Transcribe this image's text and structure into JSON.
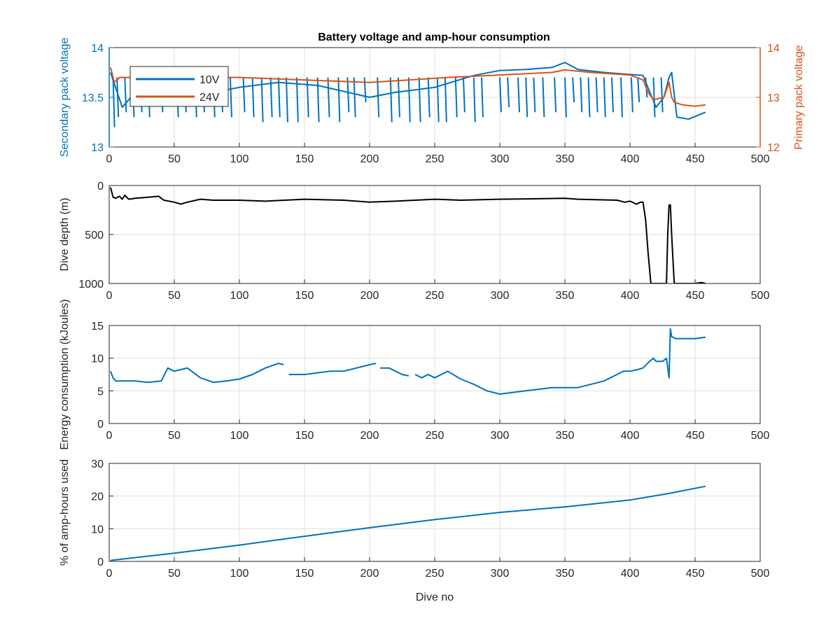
{
  "colors": {
    "blue": "#0072BD",
    "orange": "#D95319",
    "black": "#000000",
    "grid": "#dfdfdf",
    "axis": "#262626"
  },
  "chart_data": [
    {
      "type": "line",
      "title": "Battery voltage and amp-hour consumption",
      "xlabel": "",
      "xlim": [
        0,
        500
      ],
      "xticks": [
        "0",
        "50",
        "100",
        "150",
        "200",
        "250",
        "300",
        "350",
        "400",
        "450",
        "500"
      ],
      "grid": true,
      "legend_position": "top-left",
      "axes": {
        "left": {
          "ylabel": "Secondary pack voltage",
          "ylim": [
            13,
            14
          ],
          "yticks": [
            "13",
            "13.5",
            "14"
          ],
          "color": "#0072BD"
        },
        "right": {
          "ylabel": "Primary pack voltage",
          "ylim": [
            12,
            14
          ],
          "yticks": [
            "12",
            "13",
            "14"
          ],
          "color": "#D95319"
        }
      },
      "series": [
        {
          "name": "10V",
          "axis": "left",
          "color": "#0072BD",
          "x": [
            1,
            10,
            20,
            40,
            60,
            80,
            100,
            130,
            160,
            200,
            220,
            250,
            280,
            300,
            320,
            340,
            350,
            360,
            380,
            410,
            420,
            426,
            430,
            432,
            436,
            445,
            458
          ],
          "y": [
            13.75,
            13.4,
            13.55,
            13.45,
            13.5,
            13.55,
            13.6,
            13.65,
            13.62,
            13.5,
            13.55,
            13.6,
            13.72,
            13.77,
            13.78,
            13.8,
            13.85,
            13.78,
            13.75,
            13.72,
            13.4,
            13.5,
            13.7,
            13.75,
            13.3,
            13.28,
            13.35
          ],
          "dips": [
            [
              3,
              13.2
            ],
            [
              6,
              13.3
            ],
            [
              12,
              13.35
            ],
            [
              18,
              13.3
            ],
            [
              24,
              13.35
            ],
            [
              30,
              13.3
            ],
            [
              40,
              13.35
            ],
            [
              52,
              13.3
            ],
            [
              58,
              13.35
            ],
            [
              66,
              13.3
            ],
            [
              72,
              13.35
            ],
            [
              80,
              13.3
            ],
            [
              86,
              13.35
            ],
            [
              93,
              13.3
            ],
            [
              103,
              13.35
            ],
            [
              110,
              13.3
            ],
            [
              117,
              13.25
            ],
            [
              124,
              13.3
            ],
            [
              130,
              13.3
            ],
            [
              136,
              13.25
            ],
            [
              144,
              13.25
            ],
            [
              152,
              13.3
            ],
            [
              160,
              13.25
            ],
            [
              168,
              13.3
            ],
            [
              176,
              13.25
            ],
            [
              183,
              13.35
            ],
            [
              188,
              13.3
            ],
            [
              196,
              13.45
            ],
            [
              206,
              13.3
            ],
            [
              216,
              13.25
            ],
            [
              222,
              13.3
            ],
            [
              230,
              13.25
            ],
            [
              238,
              13.25
            ],
            [
              245,
              13.3
            ],
            [
              252,
              13.25
            ],
            [
              258,
              13.25
            ],
            [
              266,
              13.3
            ],
            [
              272,
              13.35
            ],
            [
              280,
              13.25
            ],
            [
              286,
              13.3
            ],
            [
              300,
              13.35
            ],
            [
              306,
              13.4
            ],
            [
              314,
              13.35
            ],
            [
              320,
              13.3
            ],
            [
              326,
              13.35
            ],
            [
              333,
              13.3
            ],
            [
              342,
              13.35
            ],
            [
              350,
              13.3
            ],
            [
              356,
              13.45
            ],
            [
              362,
              13.35
            ],
            [
              368,
              13.3
            ],
            [
              374,
              13.35
            ],
            [
              380,
              13.3
            ],
            [
              386,
              13.35
            ],
            [
              393,
              13.3
            ],
            [
              401,
              13.35
            ],
            [
              406,
              13.45
            ],
            [
              412,
              13.5
            ],
            [
              418,
              13.3
            ],
            [
              424,
              13.35
            ]
          ]
        },
        {
          "name": "24V",
          "axis": "right",
          "color": "#D95319",
          "x": [
            1,
            4,
            8,
            15,
            30,
            60,
            100,
            150,
            200,
            230,
            260,
            300,
            340,
            350,
            370,
            400,
            410,
            414,
            418,
            426,
            430,
            432,
            434,
            440,
            450,
            458
          ],
          "y": [
            13.6,
            13.3,
            13.4,
            13.4,
            13.4,
            13.4,
            13.4,
            13.35,
            13.3,
            13.35,
            13.4,
            13.45,
            13.5,
            13.55,
            13.5,
            13.45,
            13.35,
            13.1,
            12.95,
            13.0,
            13.3,
            13.0,
            12.9,
            12.85,
            12.82,
            12.85
          ]
        }
      ]
    },
    {
      "type": "line",
      "xlim": [
        0,
        500
      ],
      "xticks": [
        "0",
        "50",
        "100",
        "150",
        "200",
        "250",
        "300",
        "350",
        "400",
        "450",
        "500"
      ],
      "ylabel": "Dive depth (m)",
      "ylim": [
        0,
        1000
      ],
      "y_reversed": true,
      "yticks": [
        "0",
        "500",
        "1000"
      ],
      "grid": true,
      "series": [
        {
          "color": "#000000",
          "x": [
            1,
            3,
            5,
            8,
            10,
            12,
            15,
            20,
            30,
            38,
            42,
            50,
            55,
            60,
            70,
            80,
            100,
            120,
            150,
            180,
            200,
            220,
            250,
            270,
            300,
            330,
            350,
            360,
            390,
            396,
            400,
            405,
            408,
            410,
            412,
            414,
            416,
            418,
            426,
            428,
            429,
            430,
            431,
            432,
            434,
            436,
            440,
            450,
            455,
            458
          ],
          "y": [
            20,
            120,
            130,
            110,
            140,
            100,
            140,
            130,
            120,
            110,
            150,
            170,
            190,
            170,
            140,
            150,
            150,
            160,
            140,
            150,
            170,
            160,
            140,
            150,
            140,
            135,
            130,
            140,
            150,
            170,
            160,
            190,
            170,
            170,
            350,
            700,
            1000,
            1000,
            1000,
            1000,
            500,
            200,
            200,
            500,
            1000,
            1000,
            1000,
            1000,
            990,
            1000
          ]
        }
      ]
    },
    {
      "type": "line",
      "xlim": [
        0,
        500
      ],
      "xticks": [
        "0",
        "50",
        "100",
        "150",
        "200",
        "250",
        "300",
        "350",
        "400",
        "450",
        "500"
      ],
      "ylabel": "Energy consumption (kJoules)",
      "ylim": [
        0,
        15
      ],
      "yticks": [
        "0",
        "5",
        "10",
        "15"
      ],
      "grid": true,
      "series": [
        {
          "color": "#0072BD",
          "x": [
            1,
            3,
            5,
            10,
            20,
            30,
            40,
            45,
            50,
            60,
            70,
            80,
            90,
            100,
            110,
            120,
            130,
            134,
            null,
            138,
            150,
            170,
            180,
            190,
            200,
            205,
            null,
            208,
            215,
            220,
            225,
            230,
            null,
            235,
            240,
            245,
            250,
            260,
            270,
            280,
            290,
            300,
            320,
            340,
            360,
            380,
            390,
            395,
            400,
            405,
            410,
            415,
            418,
            420,
            425,
            428,
            430,
            431,
            432,
            435,
            440,
            450,
            458
          ],
          "y": [
            8,
            7,
            6.5,
            6.5,
            6.5,
            6.3,
            6.5,
            8.5,
            8,
            8.5,
            7,
            6.3,
            6.5,
            6.8,
            7.5,
            8.5,
            9.2,
            9,
            null,
            7.5,
            7.5,
            8,
            8,
            8.5,
            9,
            9.2,
            null,
            8.5,
            8.5,
            8,
            7.5,
            7.3,
            null,
            7.5,
            7,
            7.5,
            7,
            8,
            6.8,
            6,
            5,
            4.5,
            5,
            5.5,
            5.5,
            6.5,
            7.5,
            8,
            8,
            8.2,
            8.5,
            9.5,
            10,
            9.5,
            9.5,
            10,
            7,
            14.5,
            13.3,
            13,
            13,
            13,
            13.2
          ]
        }
      ]
    },
    {
      "type": "line",
      "xlim": [
        0,
        500
      ],
      "xticks": [
        "0",
        "50",
        "100",
        "150",
        "200",
        "250",
        "300",
        "350",
        "400",
        "450",
        "500"
      ],
      "xlabel": "Dive no",
      "ylabel": "% of amp-hours used",
      "ylim": [
        0,
        30
      ],
      "yticks": [
        "0",
        "10",
        "20",
        "30"
      ],
      "grid": true,
      "series": [
        {
          "color": "#0072BD",
          "x": [
            1,
            50,
            100,
            150,
            200,
            250,
            300,
            350,
            400,
            430,
            458
          ],
          "y": [
            0.3,
            2.5,
            5,
            7.7,
            10.3,
            12.8,
            15,
            16.7,
            18.8,
            20.8,
            23
          ]
        }
      ]
    }
  ]
}
